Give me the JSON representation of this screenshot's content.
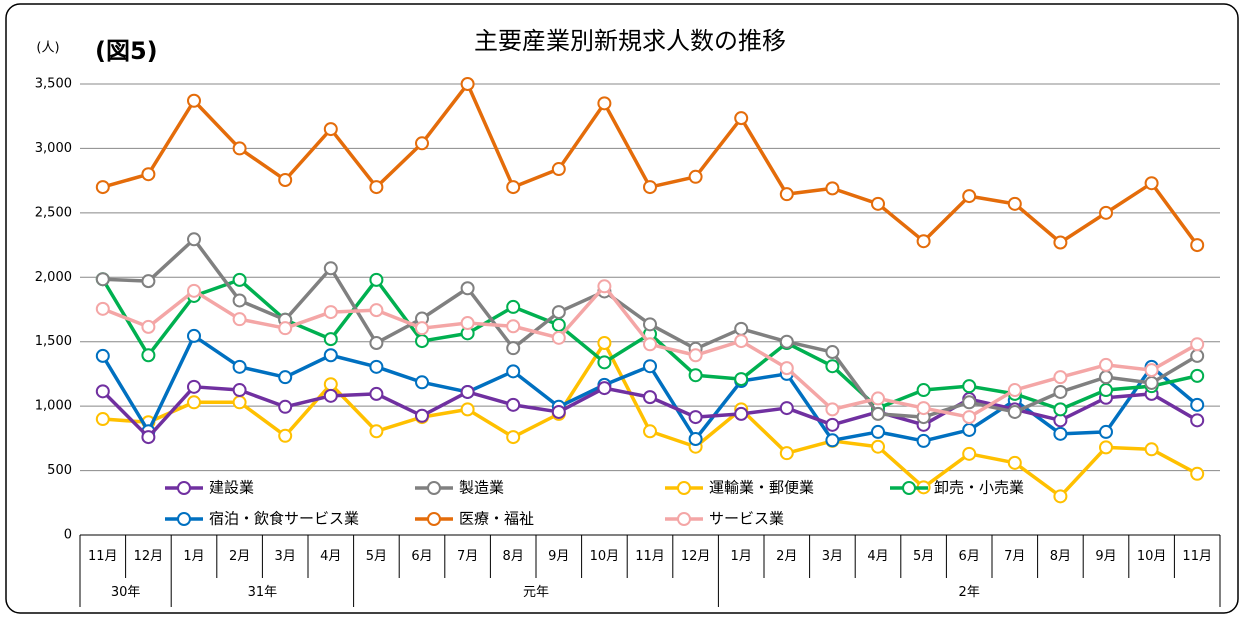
{
  "chart_data": {
    "type": "line",
    "title": "主要産業別新規求人数の推移",
    "annotation": "(図5)",
    "y_unit": "(人)",
    "categories": [
      "11月",
      "12月",
      "1月",
      "2月",
      "3月",
      "4月",
      "5月",
      "6月",
      "7月",
      "8月",
      "9月",
      "10月",
      "11月",
      "12月",
      "1月",
      "2月",
      "3月",
      "4月",
      "5月",
      "6月",
      "7月",
      "8月",
      "9月",
      "10月",
      "11月"
    ],
    "year_groups": [
      {
        "label": "30年",
        "count": 2
      },
      {
        "label": "31年",
        "count": 4
      },
      {
        "label": "元年",
        "count": 8
      },
      {
        "label": "2年",
        "count": 11
      }
    ],
    "ylim": [
      0,
      3500
    ],
    "yticks": [
      0,
      {
        "value": 500,
        "label": "500"
      },
      {
        "value": 1000,
        "label": "1,000"
      },
      {
        "value": 1500,
        "label": "1,500"
      },
      {
        "value": 2000,
        "label": "2,000"
      },
      {
        "value": 2500,
        "label": "2,500"
      },
      {
        "value": 3000,
        "label": "3,000"
      },
      {
        "value": 3500,
        "label": "3,500"
      }
    ],
    "grid": true,
    "series": [
      {
        "name": "建設業",
        "color": "#7030a0",
        "values": [
          1115,
          760,
          1150,
          1125,
          995,
          1080,
          1095,
          925,
          1110,
          1010,
          955,
          1140,
          1070,
          915,
          940,
          985,
          855,
          955,
          855,
          1055,
          975,
          890,
          1065,
          1095,
          890
        ]
      },
      {
        "name": "製造業",
        "color": "#808080",
        "values": [
          1985,
          1970,
          2295,
          1820,
          1670,
          2070,
          1490,
          1680,
          1915,
          1450,
          1730,
          1890,
          1635,
          1445,
          1600,
          1500,
          1420,
          940,
          915,
          1030,
          955,
          1110,
          1225,
          1180,
          1390
        ]
      },
      {
        "name": "運輸業・郵便業",
        "color": "#ffc000",
        "values": [
          900,
          875,
          1030,
          1030,
          770,
          1170,
          805,
          915,
          975,
          760,
          940,
          1490,
          805,
          685,
          975,
          635,
          730,
          685,
          370,
          630,
          560,
          300,
          680,
          665,
          475
        ]
      },
      {
        "name": "卸売・小売業",
        "color": "#00b050",
        "values": [
          1985,
          1395,
          1855,
          1980,
          1670,
          1520,
          1980,
          1505,
          1565,
          1770,
          1630,
          1340,
          1560,
          1240,
          1210,
          1490,
          1310,
          985,
          1125,
          1155,
          1095,
          975,
          1125,
          1155,
          1235
        ]
      },
      {
        "name": "宿泊・飲食サービス業",
        "color": "#0070c0",
        "values": [
          1390,
          805,
          1545,
          1305,
          1225,
          1395,
          1305,
          1185,
          1110,
          1270,
          995,
          1165,
          1310,
          745,
          1195,
          1250,
          735,
          800,
          730,
          815,
          1045,
          785,
          800,
          1305,
          1010
        ]
      },
      {
        "name": "医療・福祉",
        "color": "#e46c0a",
        "values": [
          2700,
          2800,
          3370,
          3000,
          2755,
          3150,
          2700,
          3040,
          3500,
          2700,
          2840,
          3350,
          2700,
          2780,
          3235,
          2645,
          2690,
          2570,
          2280,
          2630,
          2570,
          2270,
          2500,
          2730,
          2250
        ]
      },
      {
        "name": "サービス業",
        "color": "#f4a6a6",
        "values": [
          1755,
          1615,
          1895,
          1675,
          1605,
          1730,
          1745,
          1605,
          1645,
          1620,
          1530,
          1930,
          1480,
          1395,
          1505,
          1295,
          975,
          1060,
          985,
          915,
          1125,
          1225,
          1320,
          1280,
          1480
        ]
      }
    ]
  }
}
